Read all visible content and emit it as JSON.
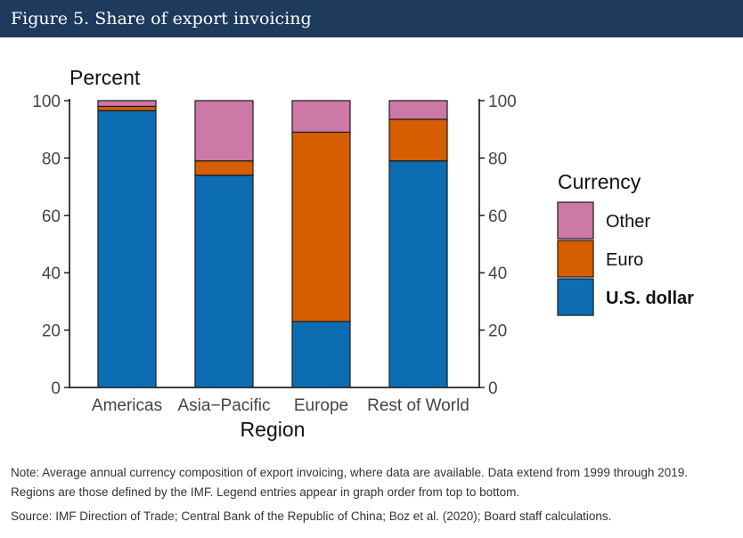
{
  "header": {
    "title": "Figure 5. Share of export invoicing"
  },
  "chart_data": {
    "type": "bar",
    "stacked": true,
    "ylabel": "Percent",
    "xlabel": "Region",
    "ylim": [
      0,
      100
    ],
    "yticks": [
      0,
      20,
      40,
      60,
      80,
      100
    ],
    "categories": [
      "Americas",
      "Asia−Pacific",
      "Europe",
      "Rest of World"
    ],
    "series": [
      {
        "name": "U.S. dollar",
        "color": "#0d6db2",
        "values": [
          96.5,
          74,
          23,
          79
        ]
      },
      {
        "name": "Euro",
        "color": "#d55e00",
        "values": [
          1.5,
          5,
          66,
          14.5
        ]
      },
      {
        "name": "Other",
        "color": "#cc79a7",
        "values": [
          2,
          21,
          11,
          6.5
        ]
      }
    ],
    "legend": {
      "title": "Currency",
      "position": "right",
      "order": [
        "Other",
        "Euro",
        "U.S. dollar"
      ]
    }
  },
  "note": "Note: Average annual currency composition of export invoicing, where data are available. Data extend from 1999 through 2019. Regions are those defined by the IMF. Legend entries appear in graph order from top to bottom.",
  "source": "Source: IMF Direction of Trade; Central Bank of the Republic of China; Boz et al. (2020); Board staff calculations."
}
